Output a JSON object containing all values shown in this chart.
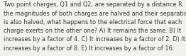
{
  "lines": [
    "Two point charges, Q1 and Q2, are separated by a distance R. If",
    "the magnitudes of both charges are halved and their separation",
    "is also halved, what happens to the electrical force that each",
    "charge exerts on the other one? A) It remains the same. B) It",
    "increases by a factor of 4. C) It increases by a factor of 2. D) It",
    "increases by a factor of 8. E) It increases by a factor of 16."
  ],
  "font_size": 5.85,
  "text_color": "#333333",
  "background_color": "#f2f2ed",
  "figwidth": 2.62,
  "figheight": 0.79,
  "dpi": 100
}
